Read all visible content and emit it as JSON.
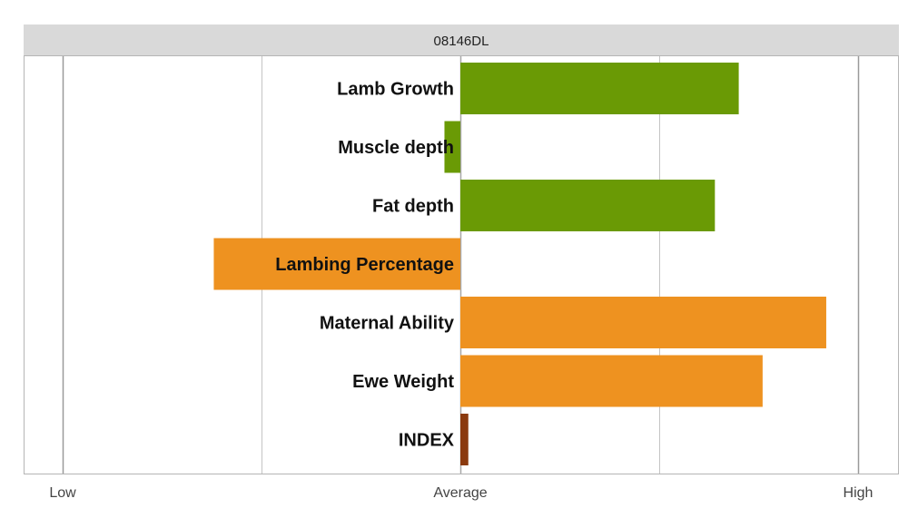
{
  "chart_data": {
    "type": "bar",
    "orientation": "horizontal",
    "title": "08146DL",
    "categories": [
      "Lamb Growth",
      "Muscle depth",
      "Fat depth",
      "Lambing Percentage",
      "Maternal Ability",
      "Ewe Weight",
      "INDEX"
    ],
    "values": [
      0.7,
      -0.04,
      0.64,
      -0.62,
      0.92,
      0.76,
      0.02
    ],
    "bar_colors": [
      "#6a9a05",
      "#6a9a05",
      "#6a9a05",
      "#ee9220",
      "#ee9220",
      "#ee9220",
      "#8b3a0f"
    ],
    "xlim": [
      -1,
      1
    ],
    "x_ticks": [
      {
        "value": -1,
        "label": "Low"
      },
      {
        "value": 0,
        "label": "Average"
      },
      {
        "value": 1,
        "label": "High"
      }
    ],
    "minor_gridlines": [
      -0.5,
      0.5
    ],
    "grid": true,
    "legend": "none"
  }
}
